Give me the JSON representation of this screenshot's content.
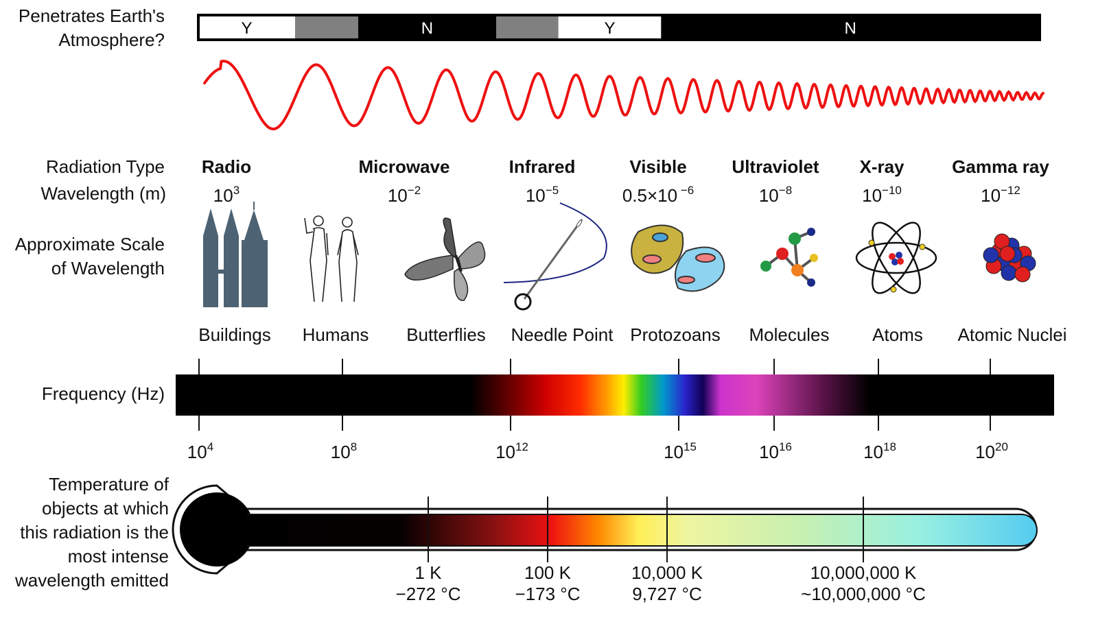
{
  "labels": {
    "atmosphere": [
      "Penetrates Earth's",
      "Atmosphere?"
    ],
    "radiation_type": "Radiation Type",
    "wavelength": "Wavelength (m)",
    "scale": [
      "Approximate Scale",
      "of Wavelength"
    ],
    "frequency": "Frequency (Hz)",
    "temperature": [
      "Temperature of",
      "objects at which",
      "this radiation is the",
      "most intense",
      "wavelength emitted"
    ]
  },
  "atmosphere_bar": [
    {
      "text": "Y",
      "type": "yes",
      "from": 0.0,
      "to": 0.115
    },
    {
      "text": "",
      "type": "partial",
      "from": 0.115,
      "to": 0.19
    },
    {
      "text": "N",
      "type": "no",
      "from": 0.19,
      "to": 0.354
    },
    {
      "text": "",
      "type": "partial",
      "from": 0.354,
      "to": 0.428
    },
    {
      "text": "Y",
      "type": "yes",
      "from": 0.428,
      "to": 0.55
    },
    {
      "text": "N",
      "type": "no",
      "from": 0.55,
      "to": 1.0
    }
  ],
  "radiation": [
    {
      "name": "Radio",
      "base": "10",
      "exp": "3"
    },
    {
      "name": "Microwave",
      "base": "10",
      "exp": "−2"
    },
    {
      "name": "Infrared",
      "base": "10",
      "exp": "−5"
    },
    {
      "name": "Visible",
      "base": "0.5×10",
      "exp": " −6"
    },
    {
      "name": "Ultraviolet",
      "base": "10",
      "exp": "−8"
    },
    {
      "name": "X-ray",
      "base": "10",
      "exp": "−10"
    },
    {
      "name": "Gamma ray",
      "base": "10",
      "exp": "−12"
    }
  ],
  "scales": [
    {
      "label": "Buildings",
      "icon": "buildings-icon"
    },
    {
      "label": "Humans",
      "icon": "humans-icon"
    },
    {
      "label": "Butterflies",
      "icon": "butterfly-icon"
    },
    {
      "label": "Needle Point",
      "icon": "needle-icon"
    },
    {
      "label": "Protozoans",
      "icon": "protozoan-icon"
    },
    {
      "label": "Molecules",
      "icon": "molecule-icon"
    },
    {
      "label": "Atoms",
      "icon": "atom-icon"
    },
    {
      "label": "Atomic Nuclei",
      "icon": "nucleus-icon"
    }
  ],
  "frequencies": [
    {
      "base": "10",
      "exp": "4"
    },
    {
      "base": "10",
      "exp": "8"
    },
    {
      "base": "10",
      "exp": "12"
    },
    {
      "base": "10",
      "exp": "15"
    },
    {
      "base": "10",
      "exp": "16"
    },
    {
      "base": "10",
      "exp": "18"
    },
    {
      "base": "10",
      "exp": "20"
    }
  ],
  "temperatures": [
    {
      "k": "1 K",
      "c": "−272 °C"
    },
    {
      "k": "100 K",
      "c": "−173 °C"
    },
    {
      "k": "10,000 K",
      "c": "9,727 °C"
    },
    {
      "k": "10,000,000 K",
      "c": "~10,000,000 °C"
    }
  ],
  "colors": {
    "wave": "#ee1111",
    "bar": "#000000",
    "partial": "#808080",
    "icon_slate": "#4d6272"
  }
}
